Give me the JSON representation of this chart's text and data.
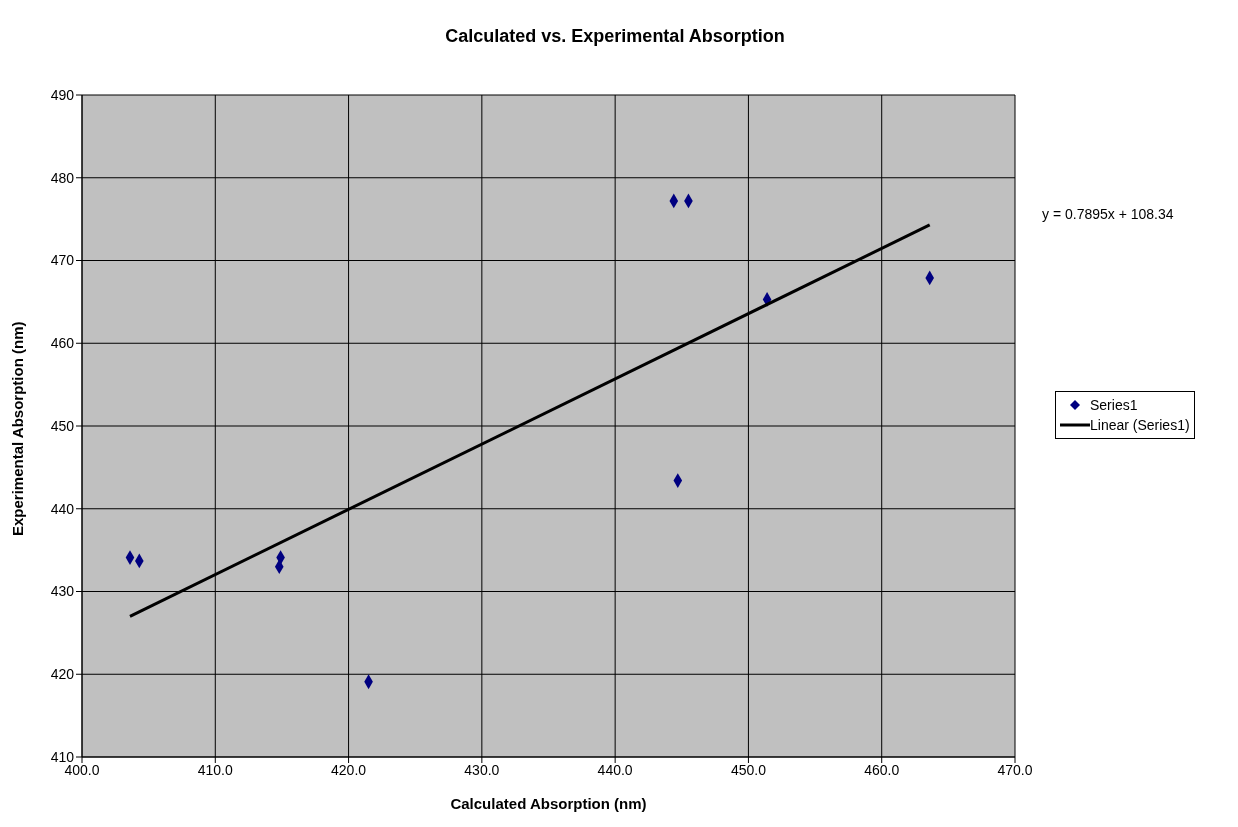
{
  "chart_data": {
    "type": "scatter",
    "title": "Calculated vs. Experimental Absorption",
    "xlabel": "Calculated Absorption (nm)",
    "ylabel": "Experimental Absorption (nm)",
    "series": [
      {
        "name": "Series1",
        "marker": "diamond",
        "color": "#000080",
        "x": [
          403.6,
          404.3,
          414.9,
          414.8,
          421.5,
          444.4,
          445.5,
          451.4,
          463.6,
          444.7
        ],
        "values": [
          434.1,
          433.7,
          434.1,
          433.0,
          419.1,
          477.2,
          477.2,
          465.3,
          467.9,
          443.4
        ]
      },
      {
        "name": "Linear (Series1)",
        "type": "line",
        "color": "#000000",
        "x": [
          403.6,
          463.6
        ],
        "values": [
          427.0,
          474.3
        ]
      }
    ],
    "annotations": [
      "y = 0.7895x + 108.34"
    ],
    "xlim": [
      400,
      470
    ],
    "xticks": [
      {
        "value": 400,
        "label": "400.0"
      },
      {
        "value": 410,
        "label": "410.0"
      },
      {
        "value": 420,
        "label": "420.0"
      },
      {
        "value": 430,
        "label": "430.0"
      },
      {
        "value": 440,
        "label": "440.0"
      },
      {
        "value": 450,
        "label": "450.0"
      },
      {
        "value": 460,
        "label": "460.0"
      },
      {
        "value": 470,
        "label": "470.0"
      }
    ],
    "ylim": [
      410,
      490
    ],
    "yticks": [
      410,
      420,
      430,
      440,
      450,
      460,
      470,
      480,
      490
    ],
    "grid": true,
    "legend": "right",
    "line_style": "solid"
  }
}
